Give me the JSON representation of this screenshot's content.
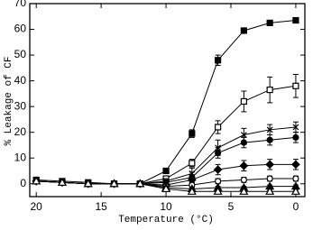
{
  "chart_data": {
    "type": "line",
    "x_label": "Temperature (°C)",
    "y_label": "% Leakage of CF",
    "x": [
      20,
      18,
      16,
      14,
      12,
      10,
      8,
      6,
      4,
      2,
      0
    ],
    "xlim": [
      20.5,
      -0.7
    ],
    "ylim": [
      -5,
      70
    ],
    "xticks": [
      20,
      15,
      10,
      5,
      0
    ],
    "yticks": [
      0,
      10,
      20,
      30,
      40,
      50,
      60,
      70
    ],
    "series": [
      {
        "marker": "square-filled",
        "color": "#000000",
        "values": [
          1.5,
          1,
          0.5,
          0,
          0,
          5,
          19.5,
          48,
          59.5,
          62.5,
          63.5
        ],
        "errors": [
          0,
          0,
          0,
          0,
          0,
          0.8,
          1.5,
          2,
          1,
          0.8,
          0.8
        ]
      },
      {
        "marker": "square-open",
        "color": "#000000",
        "values": [
          1,
          0.5,
          0,
          0,
          0,
          2,
          8,
          22,
          32,
          36.5,
          38
        ],
        "errors": [
          0,
          0,
          0,
          0,
          0,
          1,
          1.5,
          2.5,
          4,
          5,
          4.5
        ]
      },
      {
        "marker": "cross",
        "color": "#000000",
        "values": [
          1,
          0.5,
          0,
          0,
          0,
          1,
          4,
          14,
          19,
          21,
          22
        ],
        "errors": [
          0,
          0,
          0,
          0,
          0,
          1,
          2,
          3,
          2.5,
          2,
          2
        ]
      },
      {
        "marker": "circle-filled",
        "color": "#000000",
        "values": [
          1,
          0.5,
          0,
          0,
          0,
          0.5,
          2.5,
          12,
          16,
          17,
          18
        ],
        "errors": [
          0,
          0,
          0,
          0,
          0,
          1,
          2,
          2,
          2,
          2,
          2
        ]
      },
      {
        "marker": "diamond-filled",
        "color": "#000000",
        "values": [
          1,
          0.5,
          0,
          0,
          0,
          -0.5,
          1.5,
          5.5,
          7,
          7.5,
          7.5
        ],
        "errors": [
          0,
          0,
          0,
          0,
          0,
          1,
          2,
          2,
          2,
          2,
          2
        ]
      },
      {
        "marker": "circle-open",
        "color": "#000000",
        "values": [
          1,
          0.5,
          0,
          0,
          0,
          -1,
          -0.5,
          1,
          1.5,
          2,
          2
        ],
        "errors": [
          0,
          0,
          0,
          0,
          0,
          0.5,
          1,
          1,
          1,
          1,
          1
        ]
      },
      {
        "marker": "triangle-filled",
        "color": "#000000",
        "values": [
          1,
          0.5,
          0,
          0,
          0,
          -1.5,
          -2,
          -1.5,
          -1.5,
          -1,
          -1
        ],
        "errors": [
          0,
          0,
          0,
          0,
          0,
          0.5,
          0.5,
          0.5,
          0.5,
          0.5,
          0.5
        ]
      },
      {
        "marker": "triangle-open",
        "color": "#000000",
        "values": [
          1,
          0.5,
          0,
          0,
          0,
          -2,
          -3,
          -3,
          -3,
          -3,
          -3
        ],
        "errors": [
          0,
          0,
          0,
          0,
          0,
          0.5,
          0.5,
          0.5,
          0.5,
          0.5,
          0.5
        ]
      }
    ]
  }
}
